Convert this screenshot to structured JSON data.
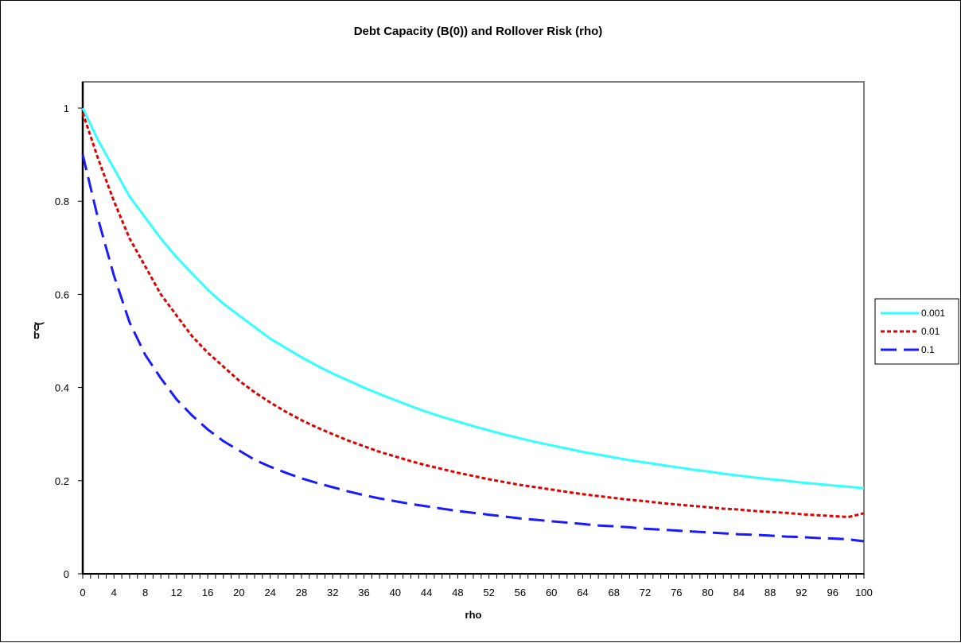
{
  "chart_data": {
    "type": "line",
    "title": "Debt Capacity (B(0)) and Rollover Risk (rho)",
    "xlabel": "rho",
    "ylabel": "b",
    "ylabel_sub": ")",
    "ylabel_mid": "0",
    "xlim": [
      0,
      100
    ],
    "ylim": [
      0,
      1
    ],
    "x_ticks": [
      0,
      4,
      8,
      12,
      16,
      20,
      24,
      28,
      32,
      36,
      40,
      44,
      48,
      52,
      56,
      60,
      64,
      68,
      72,
      76,
      80,
      84,
      88,
      92,
      96,
      100
    ],
    "y_ticks": [
      0,
      0.2,
      0.4,
      0.6,
      0.8,
      1
    ],
    "grid": false,
    "legend_position": "right",
    "x": [
      0,
      2,
      4,
      6,
      8,
      10,
      12,
      14,
      16,
      18,
      20,
      22,
      24,
      26,
      28,
      30,
      32,
      34,
      36,
      38,
      40,
      42,
      44,
      46,
      48,
      50,
      52,
      54,
      56,
      58,
      60,
      62,
      64,
      66,
      68,
      70,
      72,
      74,
      76,
      78,
      80,
      82,
      84,
      86,
      88,
      90,
      92,
      94,
      96,
      98,
      100
    ],
    "series": [
      {
        "name": "0.001",
        "color": "#33ffff",
        "style": "solid",
        "values": [
          1.0,
          0.93,
          0.87,
          0.81,
          0.765,
          0.72,
          0.68,
          0.645,
          0.61,
          0.58,
          0.555,
          0.53,
          0.505,
          0.485,
          0.465,
          0.447,
          0.43,
          0.415,
          0.4,
          0.386,
          0.373,
          0.36,
          0.348,
          0.337,
          0.327,
          0.317,
          0.308,
          0.299,
          0.291,
          0.283,
          0.276,
          0.269,
          0.262,
          0.256,
          0.25,
          0.244,
          0.239,
          0.234,
          0.229,
          0.224,
          0.22,
          0.215,
          0.211,
          0.207,
          0.203,
          0.2,
          0.196,
          0.193,
          0.19,
          0.187,
          0.184
        ]
      },
      {
        "name": "0.01",
        "color": "#e00000",
        "style": "dotted",
        "values": [
          0.99,
          0.89,
          0.8,
          0.72,
          0.66,
          0.6,
          0.555,
          0.51,
          0.475,
          0.445,
          0.415,
          0.39,
          0.368,
          0.348,
          0.33,
          0.314,
          0.3,
          0.286,
          0.274,
          0.262,
          0.252,
          0.242,
          0.233,
          0.225,
          0.217,
          0.21,
          0.203,
          0.197,
          0.191,
          0.186,
          0.181,
          0.176,
          0.171,
          0.167,
          0.163,
          0.159,
          0.156,
          0.152,
          0.149,
          0.146,
          0.143,
          0.14,
          0.138,
          0.135,
          0.133,
          0.131,
          0.128,
          0.126,
          0.124,
          0.122,
          0.13
        ]
      },
      {
        "name": "0.1",
        "color": "#1a1aff",
        "style": "dashed",
        "values": [
          0.9,
          0.76,
          0.64,
          0.54,
          0.47,
          0.42,
          0.375,
          0.34,
          0.31,
          0.285,
          0.265,
          0.245,
          0.23,
          0.217,
          0.205,
          0.195,
          0.186,
          0.177,
          0.169,
          0.162,
          0.156,
          0.15,
          0.145,
          0.14,
          0.135,
          0.131,
          0.127,
          0.123,
          0.119,
          0.116,
          0.113,
          0.11,
          0.107,
          0.104,
          0.102,
          0.1,
          0.097,
          0.095,
          0.093,
          0.091,
          0.089,
          0.087,
          0.085,
          0.084,
          0.082,
          0.08,
          0.079,
          0.077,
          0.076,
          0.074,
          0.07
        ]
      }
    ]
  }
}
